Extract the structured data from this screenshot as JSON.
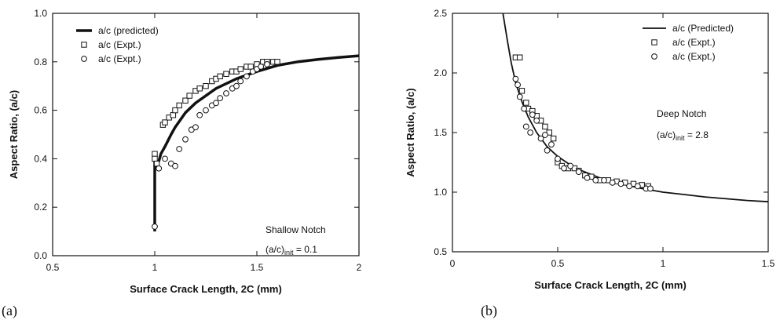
{
  "chart_data": [
    {
      "panel_label": "(a)",
      "type": "scatter",
      "xlabel": "Surface Crack Length, 2C (mm)",
      "ylabel": "Aspect Ratio, (a/c)",
      "xlim": [
        0.5,
        2
      ],
      "ylim": [
        0,
        1
      ],
      "xticks": [
        "0.5",
        "1",
        "1.5",
        "2"
      ],
      "yticks": [
        "0.0",
        "0.2",
        "0.4",
        "0.6",
        "0.8",
        "1.0"
      ],
      "legend_position": "top-left",
      "annotations": {
        "line1": "Shallow Notch",
        "line2_main": "(a/c)",
        "line2_sub": "init",
        "line2_tail": " = 0.1"
      },
      "series": [
        {
          "name": "a/c (predicted)",
          "kind": "line",
          "color": "#111111",
          "x": [
            1.0,
            1.0,
            1.01,
            1.02,
            1.03,
            1.05,
            1.08,
            1.1,
            1.15,
            1.2,
            1.3,
            1.4,
            1.5,
            1.6,
            1.7,
            1.8,
            1.9,
            2.0
          ],
          "y": [
            0.1,
            0.4,
            0.37,
            0.39,
            0.42,
            0.45,
            0.5,
            0.53,
            0.59,
            0.63,
            0.69,
            0.73,
            0.76,
            0.785,
            0.8,
            0.81,
            0.818,
            0.825
          ]
        },
        {
          "name": "a/c (Expt.)",
          "kind": "square",
          "x": [
            1.0,
            1.0,
            1.01,
            1.04,
            1.05,
            1.07,
            1.09,
            1.1,
            1.12,
            1.15,
            1.17,
            1.2,
            1.22,
            1.25,
            1.28,
            1.3,
            1.32,
            1.35,
            1.38,
            1.4,
            1.42,
            1.45,
            1.47,
            1.5,
            1.53,
            1.55,
            1.58,
            1.6
          ],
          "y": [
            0.42,
            0.4,
            0.38,
            0.54,
            0.55,
            0.57,
            0.58,
            0.6,
            0.62,
            0.64,
            0.66,
            0.68,
            0.69,
            0.7,
            0.72,
            0.73,
            0.74,
            0.75,
            0.76,
            0.76,
            0.77,
            0.78,
            0.78,
            0.79,
            0.8,
            0.8,
            0.8,
            0.8
          ]
        },
        {
          "name": "a/c (Expt.)",
          "kind": "circle",
          "x": [
            1.0,
            1.02,
            1.05,
            1.08,
            1.1,
            1.12,
            1.15,
            1.18,
            1.2,
            1.22,
            1.25,
            1.28,
            1.3,
            1.32,
            1.35,
            1.38,
            1.4,
            1.42,
            1.45,
            1.48,
            1.5,
            1.52,
            1.55
          ],
          "y": [
            0.12,
            0.36,
            0.4,
            0.38,
            0.37,
            0.44,
            0.48,
            0.52,
            0.53,
            0.58,
            0.6,
            0.62,
            0.63,
            0.65,
            0.67,
            0.69,
            0.7,
            0.72,
            0.74,
            0.76,
            0.77,
            0.78,
            0.79
          ]
        }
      ]
    },
    {
      "panel_label": "(b)",
      "type": "scatter",
      "xlabel": "Surface Crack Length, 2C (mm)",
      "ylabel": "Aspect Ratio, (a/c)",
      "xlim": [
        0,
        1.5
      ],
      "ylim": [
        0.5,
        2.5
      ],
      "xticks": [
        "0",
        "0.5",
        "1",
        "1.5"
      ],
      "yticks": [
        "0.5",
        "1.0",
        "1.5",
        "2.0",
        "2.5"
      ],
      "legend_position": "top-right",
      "annotations": {
        "line1": "Deep Notch",
        "line2_main": "(a/c)",
        "line2_sub": "init",
        "line2_tail": " = 2.8"
      },
      "series": [
        {
          "name": "a/c (Predicted)",
          "kind": "line",
          "color": "#111111",
          "x": [
            0.24,
            0.26,
            0.28,
            0.3,
            0.33,
            0.36,
            0.4,
            0.45,
            0.5,
            0.55,
            0.6,
            0.7,
            0.8,
            0.9,
            1.0,
            1.1,
            1.2,
            1.3,
            1.4,
            1.5
          ],
          "y": [
            2.5,
            2.28,
            2.08,
            1.92,
            1.76,
            1.63,
            1.5,
            1.38,
            1.3,
            1.24,
            1.19,
            1.12,
            1.07,
            1.03,
            1.0,
            0.98,
            0.96,
            0.945,
            0.93,
            0.92
          ]
        },
        {
          "name": "a/c (Expt.)",
          "kind": "square",
          "x": [
            0.3,
            0.32,
            0.33,
            0.35,
            0.36,
            0.38,
            0.4,
            0.42,
            0.44,
            0.46,
            0.48,
            0.5,
            0.52,
            0.55,
            0.58,
            0.6,
            0.63,
            0.66,
            0.7,
            0.74,
            0.78,
            0.82,
            0.86,
            0.9,
            0.93
          ],
          "y": [
            2.13,
            2.13,
            1.85,
            1.75,
            1.7,
            1.68,
            1.64,
            1.6,
            1.55,
            1.5,
            1.45,
            1.25,
            1.22,
            1.2,
            1.2,
            1.18,
            1.14,
            1.13,
            1.1,
            1.1,
            1.09,
            1.08,
            1.07,
            1.06,
            1.05
          ]
        },
        {
          "name": "a/c (Expt.)",
          "kind": "circle",
          "x": [
            0.3,
            0.31,
            0.32,
            0.34,
            0.35,
            0.37,
            0.38,
            0.4,
            0.42,
            0.44,
            0.45,
            0.47,
            0.5,
            0.53,
            0.56,
            0.6,
            0.64,
            0.68,
            0.72,
            0.76,
            0.8,
            0.84,
            0.88,
            0.92,
            0.94
          ],
          "y": [
            1.95,
            1.9,
            1.8,
            1.7,
            1.55,
            1.5,
            1.65,
            1.6,
            1.45,
            1.48,
            1.35,
            1.4,
            1.28,
            1.2,
            1.22,
            1.17,
            1.12,
            1.1,
            1.1,
            1.08,
            1.07,
            1.05,
            1.05,
            1.03,
            1.03
          ]
        }
      ]
    }
  ]
}
